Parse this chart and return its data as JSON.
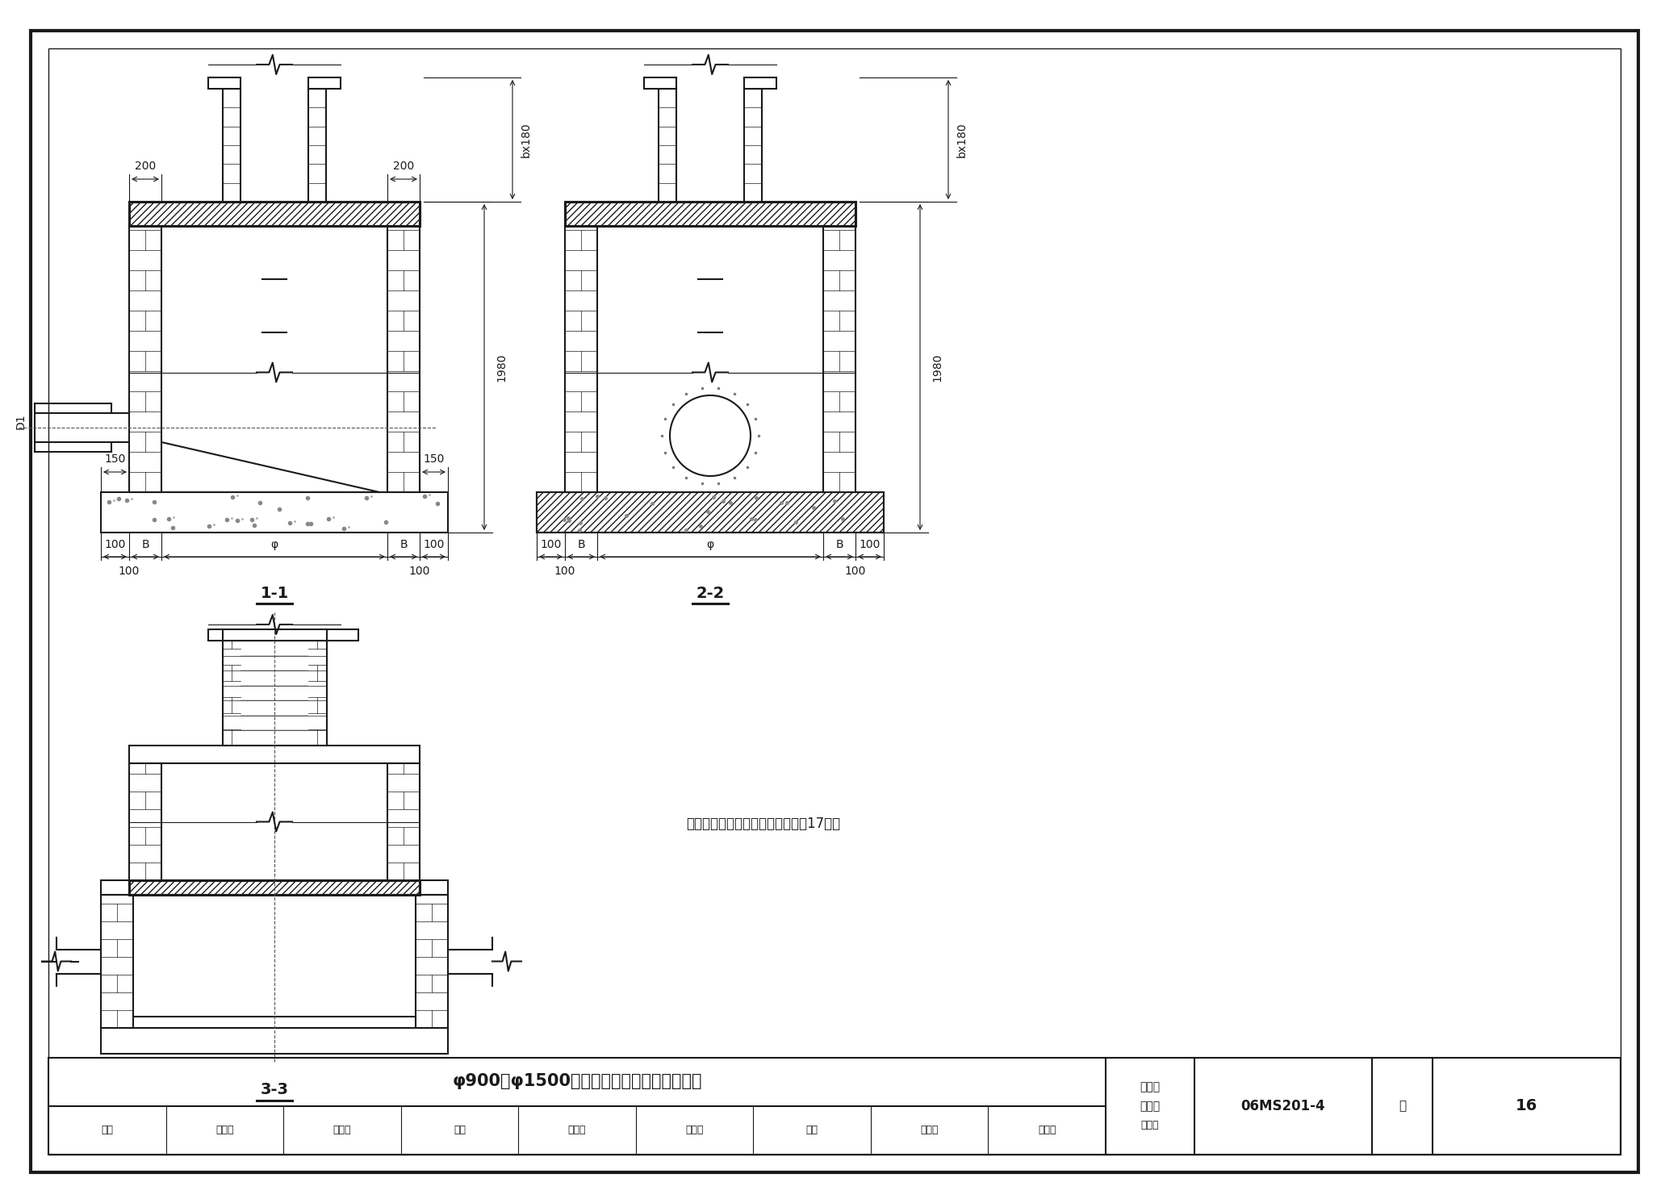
{
  "bg_color": "#ffffff",
  "line_color": "#1a1a1a",
  "title": "φ900～φ1500圆形雨水检查井组础图（二）",
  "catalog_no": "图集号",
  "catalog_val": "06MS201-4",
  "page_label": "页",
  "page_val": "16",
  "review_label": "审核",
  "review_val": "陈宗明",
  "proofread_label": "校对",
  "proofread_val": "周国华",
  "design_label": "设计",
  "design_val": "张连举",
  "note": "说明：井室各部尺寸详建本图集第17页。",
  "section_11": "1-1",
  "section_22": "2-2",
  "section_33": "3-3",
  "dim_200": "200",
  "dim_150": "150",
  "dim_100": "100",
  "dim_B": "B",
  "dim_phi": "φ",
  "dim_bx180": "bx180",
  "dim_1980": "1980",
  "dim_D1": "D1"
}
